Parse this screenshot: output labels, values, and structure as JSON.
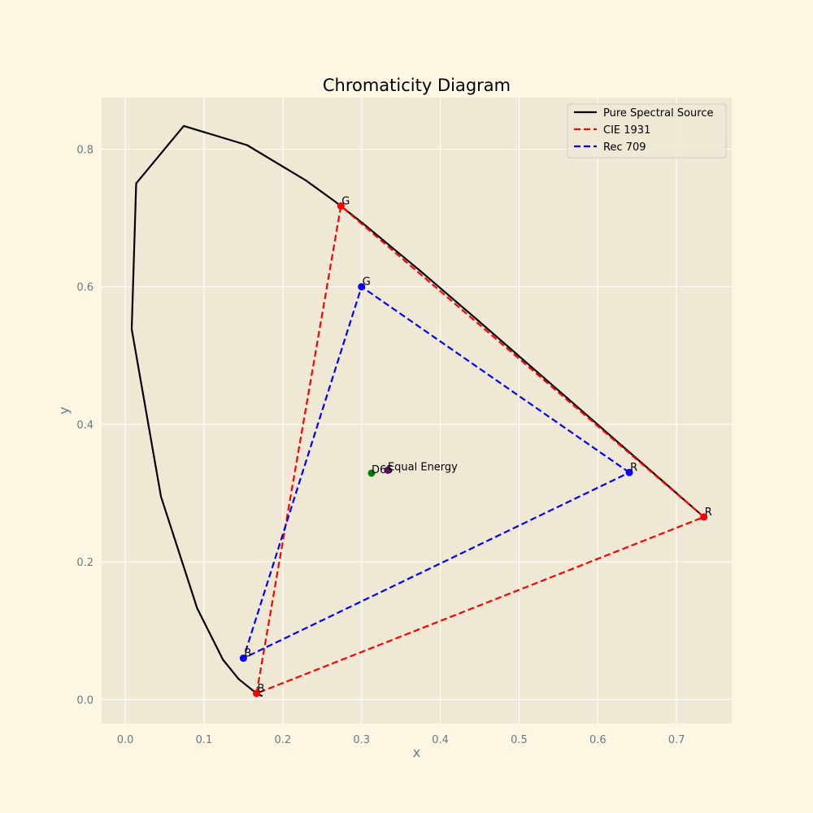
{
  "chart_data": {
    "type": "line",
    "title": "Chromaticity Diagram",
    "xlabel": "x",
    "ylabel": "y",
    "xlim": [
      -0.03,
      0.77
    ],
    "ylim": [
      -0.035,
      0.875
    ],
    "xticks": [
      0.0,
      0.1,
      0.2,
      0.3,
      0.4,
      0.5,
      0.6,
      0.7
    ],
    "yticks": [
      0.0,
      0.2,
      0.4,
      0.6,
      0.8
    ],
    "xtick_labels": [
      "0.0",
      "0.1",
      "0.2",
      "0.3",
      "0.4",
      "0.5",
      "0.6",
      "0.7"
    ],
    "ytick_labels": [
      "0.0",
      "0.2",
      "0.4",
      "0.6",
      "0.8"
    ],
    "grid": true,
    "legend_position": "top-right",
    "background": "#eee8d5",
    "page_background": "#fdf6e3",
    "series": [
      {
        "name": "Pure Spectral Source",
        "color": "#000000",
        "style": "solid",
        "x": [
          0.1741,
          0.1666,
          0.144,
          0.1241,
          0.0913,
          0.0454,
          0.0082,
          0.0139,
          0.0743,
          0.1547,
          0.2296,
          0.2658,
          0.3016,
          0.3731,
          0.4441,
          0.5125,
          0.5752,
          0.627,
          0.6658,
          0.6915,
          0.7079,
          0.7347
        ],
        "y": [
          0.005,
          0.0089,
          0.0297,
          0.0578,
          0.1327,
          0.295,
          0.5384,
          0.7502,
          0.8338,
          0.8059,
          0.7543,
          0.7243,
          0.6923,
          0.6245,
          0.5547,
          0.4866,
          0.4242,
          0.3725,
          0.334,
          0.3083,
          0.292,
          0.2653
        ]
      },
      {
        "name": "CIE 1931",
        "color": "#ff0000",
        "style": "dashed",
        "x": [
          0.7347,
          0.2738,
          0.1666,
          0.7347
        ],
        "y": [
          0.2653,
          0.7174,
          0.0089,
          0.2653
        ],
        "vertex_labels": [
          "R",
          "G",
          "B"
        ]
      },
      {
        "name": "Rec 709",
        "color": "#0000ff",
        "style": "dashed",
        "x": [
          0.64,
          0.3,
          0.15,
          0.64
        ],
        "y": [
          0.33,
          0.6,
          0.06,
          0.33
        ],
        "vertex_labels": [
          "R",
          "G",
          "B"
        ]
      }
    ],
    "points": [
      {
        "label": "D65",
        "x": 0.3127,
        "y": 0.329,
        "color": "#008000"
      },
      {
        "label": "Equal Energy",
        "x": 0.3333,
        "y": 0.3333,
        "color": "#800080"
      }
    ]
  }
}
